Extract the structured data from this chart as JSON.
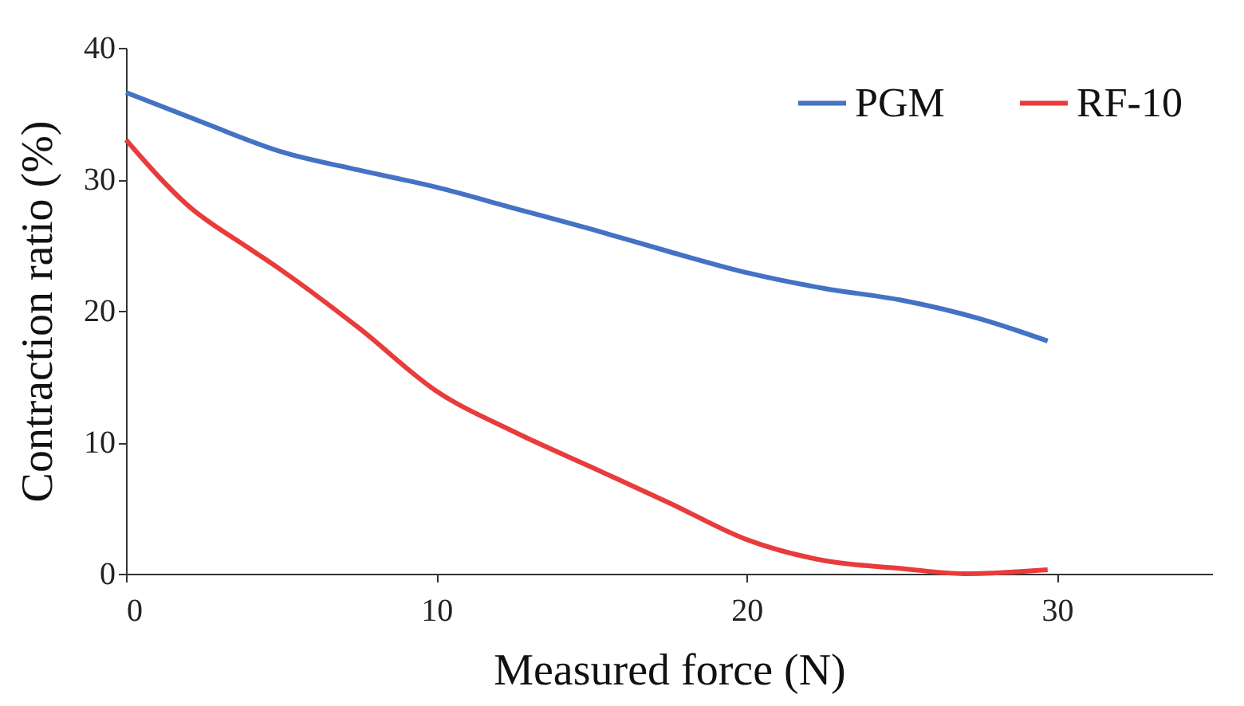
{
  "chart_data": {
    "type": "line",
    "xlabel": "Measured force (N)",
    "ylabel": "Contraction ratio (%)",
    "xlim": [
      0,
      35
    ],
    "xticks": [
      0,
      10,
      20,
      30
    ],
    "ylim": [
      0,
      40
    ],
    "yticks": [
      0,
      10,
      20,
      30,
      40
    ],
    "grid": false,
    "legend": "top right",
    "marker": "none",
    "line_style": "solid",
    "series": [
      {
        "name": "PGM",
        "color": "#4472c4",
        "x": [
          0,
          2.5,
          5,
          7.5,
          10,
          12.5,
          15,
          17.5,
          20,
          22.5,
          25,
          27.5,
          29.7
        ],
        "values": [
          36.6,
          34.3,
          32.1,
          30.7,
          29.4,
          27.8,
          26.2,
          24.5,
          22.9,
          21.7,
          20.8,
          19.4,
          17.7
        ]
      },
      {
        "name": "RF-10",
        "color": "#e83c3c",
        "x": [
          0,
          2,
          4,
          5,
          7.5,
          10,
          12.5,
          15,
          17.5,
          20,
          22.5,
          25,
          27,
          29.7
        ],
        "values": [
          33.0,
          28.0,
          24.7,
          23.1,
          18.7,
          13.9,
          10.8,
          8.1,
          5.4,
          2.6,
          1.0,
          0.4,
          0,
          0.3
        ]
      }
    ]
  }
}
